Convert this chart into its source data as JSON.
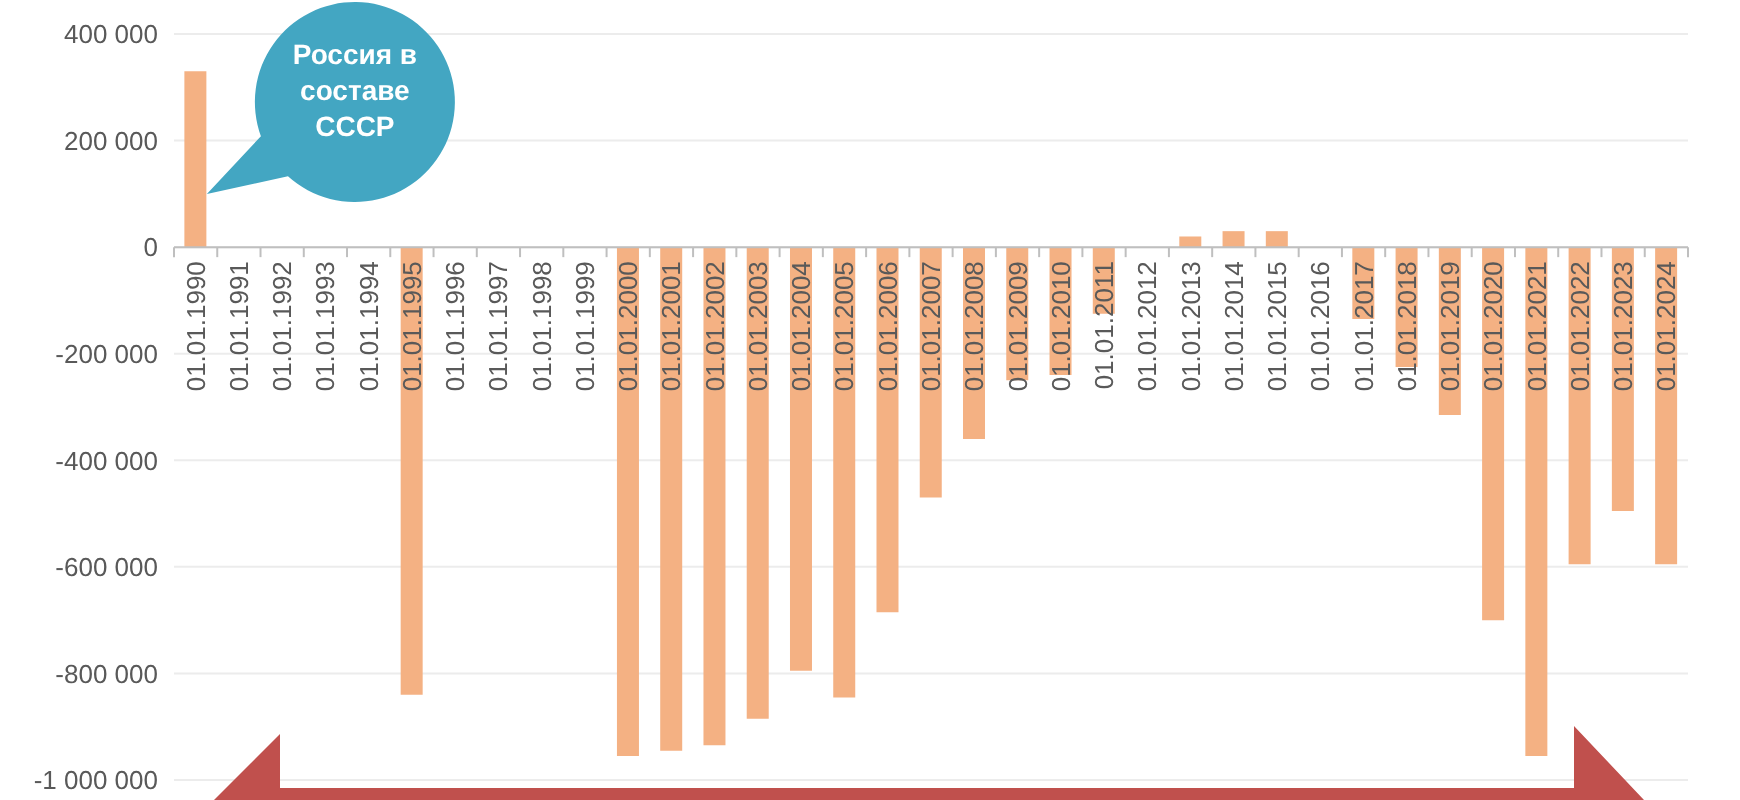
{
  "chart_data": {
    "type": "bar",
    "categories": [
      "01.01.1990",
      "01.01.1991",
      "01.01.1992",
      "01.01.1993",
      "01.01.1994",
      "01.01.1995",
      "01.01.1996",
      "01.01.1997",
      "01.01.1998",
      "01.01.1999",
      "01.01.2000",
      "01.01.2001",
      "01.01.2002",
      "01.01.2003",
      "01.01.2004",
      "01.01.2005",
      "01.01.2006",
      "01.01.2007",
      "01.01.2008",
      "01.01.2009",
      "01.01.2010",
      "01.01.2011",
      "01.01.2012",
      "01.01.2013",
      "01.01.2014",
      "01.01.2015",
      "01.01.2016",
      "01.01.2017",
      "01.01.2018",
      "01.01.2019",
      "01.01.2020",
      "01.01.2021",
      "01.01.2022",
      "01.01.2023",
      "01.01.2024"
    ],
    "values": [
      330000,
      null,
      null,
      null,
      null,
      -840000,
      null,
      null,
      null,
      null,
      -955000,
      -945000,
      -935000,
      -885000,
      -795000,
      -845000,
      -685000,
      -470000,
      -360000,
      -250000,
      -240000,
      -125000,
      null,
      20000,
      30000,
      30000,
      null,
      -135000,
      -225000,
      -315000,
      -700000,
      -955000,
      -595000,
      -495000,
      -595000
    ],
    "color": "#f4b183",
    "ylim": [
      -1000000,
      400000
    ],
    "yticks": [
      {
        "value": -1000000,
        "label": "-1 000 000"
      },
      {
        "value": -800000,
        "label": "-800 000"
      },
      {
        "value": -600000,
        "label": "-600 000"
      },
      {
        "value": -400000,
        "label": "-400 000"
      },
      {
        "value": -200000,
        "label": "-200 000"
      },
      0,
      {
        "value": 200000,
        "label": "200 000"
      },
      {
        "value": 400000,
        "label": "400 000"
      }
    ],
    "grid": "y",
    "annotations": [
      "Россия в составе СССР"
    ]
  }
}
